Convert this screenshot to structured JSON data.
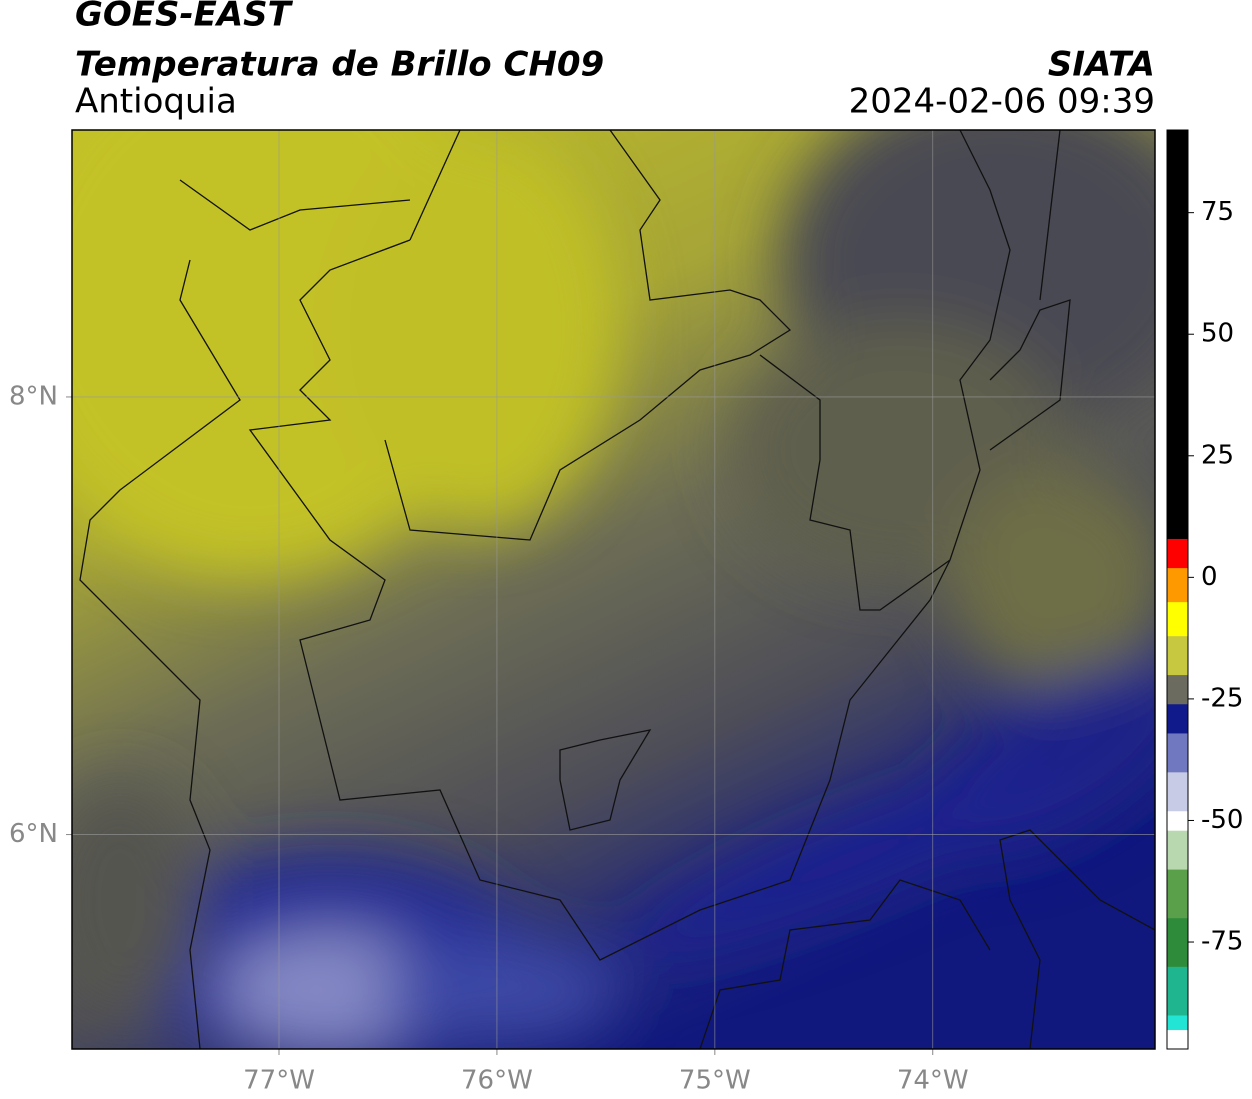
{
  "title": "GOES-EAST",
  "subtitle": "Temperatura de Brillo CH09",
  "region": "Antioquia",
  "source": "SIATA",
  "datetime": "2024-02-06 09:39",
  "map": {
    "xlim": [
      -77.95,
      -72.98
    ],
    "ylim": [
      5.02,
      9.22
    ],
    "xticks": [
      {
        "value": -77,
        "label": "77°W"
      },
      {
        "value": -76,
        "label": "76°W"
      },
      {
        "value": -75,
        "label": "75°W"
      },
      {
        "value": -74,
        "label": "74°W"
      }
    ],
    "yticks": [
      {
        "value": 8,
        "label": "8°N"
      },
      {
        "value": 6,
        "label": "6°N"
      }
    ],
    "grid": true
  },
  "colorbar": {
    "lim": [
      -97,
      92
    ],
    "ticks": [
      75,
      50,
      25,
      0,
      -25,
      -50,
      -75
    ],
    "segments": [
      {
        "range": [
          -97,
          -93
        ],
        "color": "#ffffff"
      },
      {
        "range": [
          -93,
          -90
        ],
        "color": "#22e5d5"
      },
      {
        "range": [
          -90,
          -80
        ],
        "color": "#1fb58f"
      },
      {
        "range": [
          -80,
          -70
        ],
        "color": "#2e8b3a"
      },
      {
        "range": [
          -70,
          -60
        ],
        "color": "#5aa04a"
      },
      {
        "range": [
          -60,
          -52
        ],
        "color": "#b8d8b0"
      },
      {
        "range": [
          -52,
          -48
        ],
        "color": "#ffffff"
      },
      {
        "range": [
          -48,
          -40
        ],
        "color": "#c8cbe6"
      },
      {
        "range": [
          -40,
          -32
        ],
        "color": "#7078c0"
      },
      {
        "range": [
          -32,
          -26
        ],
        "color": "#101a8a"
      },
      {
        "range": [
          -26,
          -20
        ],
        "color": "#6b6b60"
      },
      {
        "range": [
          -20,
          -12
        ],
        "color": "#c8c840"
      },
      {
        "range": [
          -12,
          -5
        ],
        "color": "#ffff00"
      },
      {
        "range": [
          -5,
          2
        ],
        "color": "#ff9900"
      },
      {
        "range": [
          2,
          8
        ],
        "color": "#ff0000"
      },
      {
        "range": [
          8,
          92
        ],
        "color": "#000000"
      }
    ]
  }
}
